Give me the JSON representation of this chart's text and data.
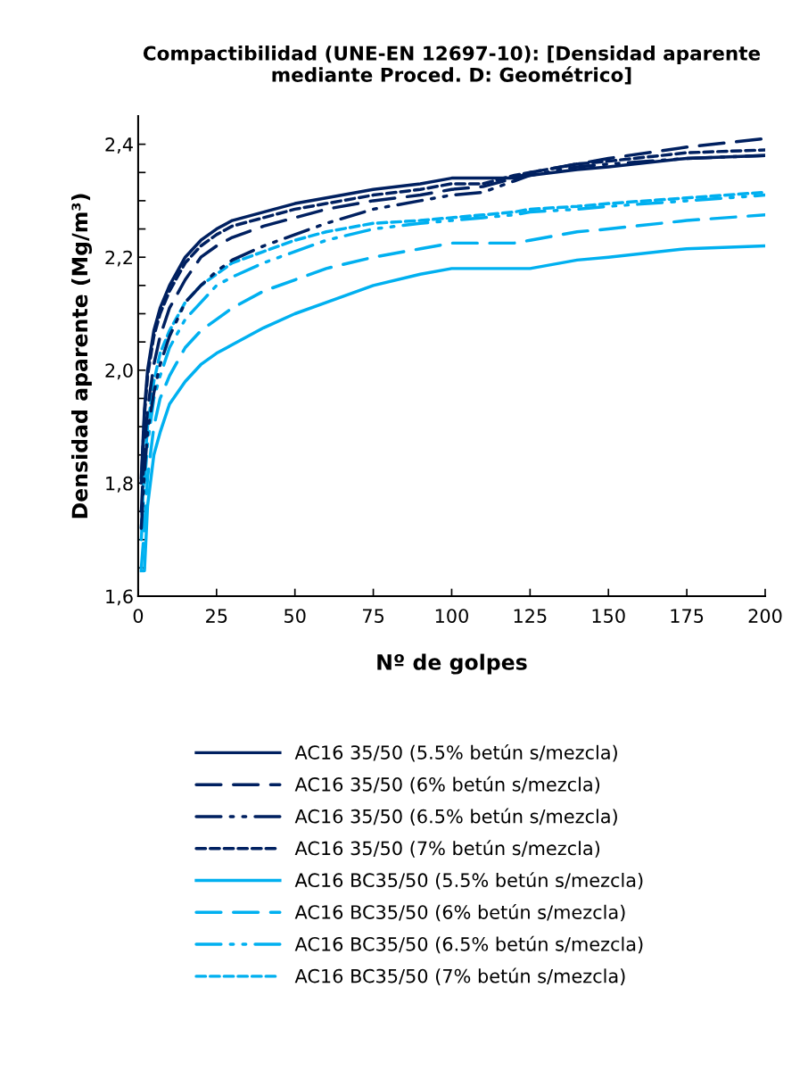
{
  "chart_data": {
    "type": "line",
    "title": "Compactibilidad (UNE-EN 12697-10): [Densidad aparente mediante Proced. D: Geométrico]",
    "xlabel": "Nº de golpes",
    "ylabel": "Densidad aparente (Mg/m³)",
    "x": [
      1,
      2,
      3,
      5,
      7,
      10,
      15,
      20,
      25,
      30,
      40,
      50,
      60,
      75,
      90,
      100,
      110,
      120,
      125,
      140,
      150,
      175,
      200
    ],
    "series": [
      {
        "name": "AC16 35/50 (5.5% betún s/mezcla)",
        "color": "#002060",
        "line_style": "solid",
        "values": [
          1.81,
          1.93,
          2.0,
          2.07,
          2.11,
          2.15,
          2.2,
          2.23,
          2.25,
          2.265,
          2.28,
          2.295,
          2.305,
          2.32,
          2.33,
          2.34,
          2.34,
          2.34,
          2.345,
          2.355,
          2.36,
          2.375,
          2.38
        ]
      },
      {
        "name": "AC16 35/50 (6% betún s/mezcla)",
        "color": "#002060",
        "line_style": "dashed",
        "values": [
          1.75,
          1.86,
          1.93,
          2.01,
          2.06,
          2.11,
          2.16,
          2.2,
          2.22,
          2.235,
          2.255,
          2.27,
          2.285,
          2.3,
          2.31,
          2.32,
          2.325,
          2.34,
          2.35,
          2.365,
          2.375,
          2.395,
          2.41
        ]
      },
      {
        "name": "AC16 35/50 (6.5% betún s/mezcla)",
        "color": "#002060",
        "line_style": "dashdot",
        "values": [
          1.72,
          1.82,
          1.89,
          1.96,
          2.01,
          2.06,
          2.12,
          2.15,
          2.175,
          2.195,
          2.22,
          2.24,
          2.26,
          2.285,
          2.3,
          2.31,
          2.315,
          2.335,
          2.345,
          2.36,
          2.365,
          2.375,
          2.38
        ]
      },
      {
        "name": "AC16 35/50 (7% betún s/mezcla)",
        "color": "#002060",
        "line_style": "dotted",
        "values": [
          1.8,
          1.92,
          1.99,
          2.06,
          2.1,
          2.14,
          2.19,
          2.22,
          2.24,
          2.255,
          2.27,
          2.285,
          2.295,
          2.31,
          2.32,
          2.33,
          2.33,
          2.345,
          2.35,
          2.365,
          2.37,
          2.385,
          2.39
        ]
      },
      {
        "name": "AC16 BC35/50 (5.5% betún s/mezcla)",
        "color": "#00b0f0",
        "line_style": "solid",
        "values": [
          1.645,
          1.645,
          1.76,
          1.85,
          1.89,
          1.94,
          1.98,
          2.01,
          2.03,
          2.045,
          2.075,
          2.1,
          2.12,
          2.15,
          2.17,
          2.18,
          2.18,
          2.18,
          2.18,
          2.195,
          2.2,
          2.215,
          2.22
        ]
      },
      {
        "name": "AC16 BC35/50 (6% betún s/mezcla)",
        "color": "#00b0f0",
        "line_style": "dashed",
        "values": [
          1.65,
          1.72,
          1.81,
          1.9,
          1.95,
          1.99,
          2.04,
          2.07,
          2.09,
          2.11,
          2.14,
          2.16,
          2.18,
          2.2,
          2.215,
          2.225,
          2.225,
          2.225,
          2.23,
          2.245,
          2.25,
          2.265,
          2.275
        ]
      },
      {
        "name": "AC16 BC35/50 (6.5% betún s/mezcla)",
        "color": "#00b0f0",
        "line_style": "dashdot",
        "values": [
          1.7,
          1.8,
          1.87,
          1.95,
          1.99,
          2.04,
          2.09,
          2.12,
          2.15,
          2.165,
          2.19,
          2.21,
          2.23,
          2.25,
          2.26,
          2.265,
          2.27,
          2.275,
          2.28,
          2.285,
          2.29,
          2.3,
          2.31
        ]
      },
      {
        "name": "AC16 BC35/50 (7% betún s/mezcla)",
        "color": "#00b0f0",
        "line_style": "dotted",
        "values": [
          1.72,
          1.83,
          1.9,
          1.98,
          2.03,
          2.07,
          2.12,
          2.15,
          2.17,
          2.19,
          2.21,
          2.23,
          2.245,
          2.26,
          2.265,
          2.27,
          2.275,
          2.28,
          2.285,
          2.29,
          2.295,
          2.305,
          2.315
        ]
      }
    ],
    "xlim": [
      0,
      200
    ],
    "xticks": [
      0,
      25,
      50,
      75,
      100,
      125,
      150,
      175,
      200
    ],
    "ylim": [
      1.6,
      2.45
    ],
    "yticks": [
      {
        "value": 1.6,
        "label": "1,6"
      },
      {
        "value": 1.65,
        "label": null
      },
      {
        "value": 1.7,
        "label": null
      },
      {
        "value": 1.75,
        "label": null
      },
      {
        "value": 1.8,
        "label": "1,8"
      },
      {
        "value": 1.85,
        "label": null
      },
      {
        "value": 1.9,
        "label": null
      },
      {
        "value": 1.95,
        "label": null
      },
      {
        "value": 2.0,
        "label": "2,0"
      },
      {
        "value": 2.05,
        "label": null
      },
      {
        "value": 2.1,
        "label": null
      },
      {
        "value": 2.15,
        "label": null
      },
      {
        "value": 2.2,
        "label": "2,2"
      },
      {
        "value": 2.25,
        "label": null
      },
      {
        "value": 2.3,
        "label": null
      },
      {
        "value": 2.35,
        "label": null
      },
      {
        "value": 2.4,
        "label": "2,4"
      }
    ],
    "grid": false,
    "legend": "bottom",
    "marker": "none"
  }
}
